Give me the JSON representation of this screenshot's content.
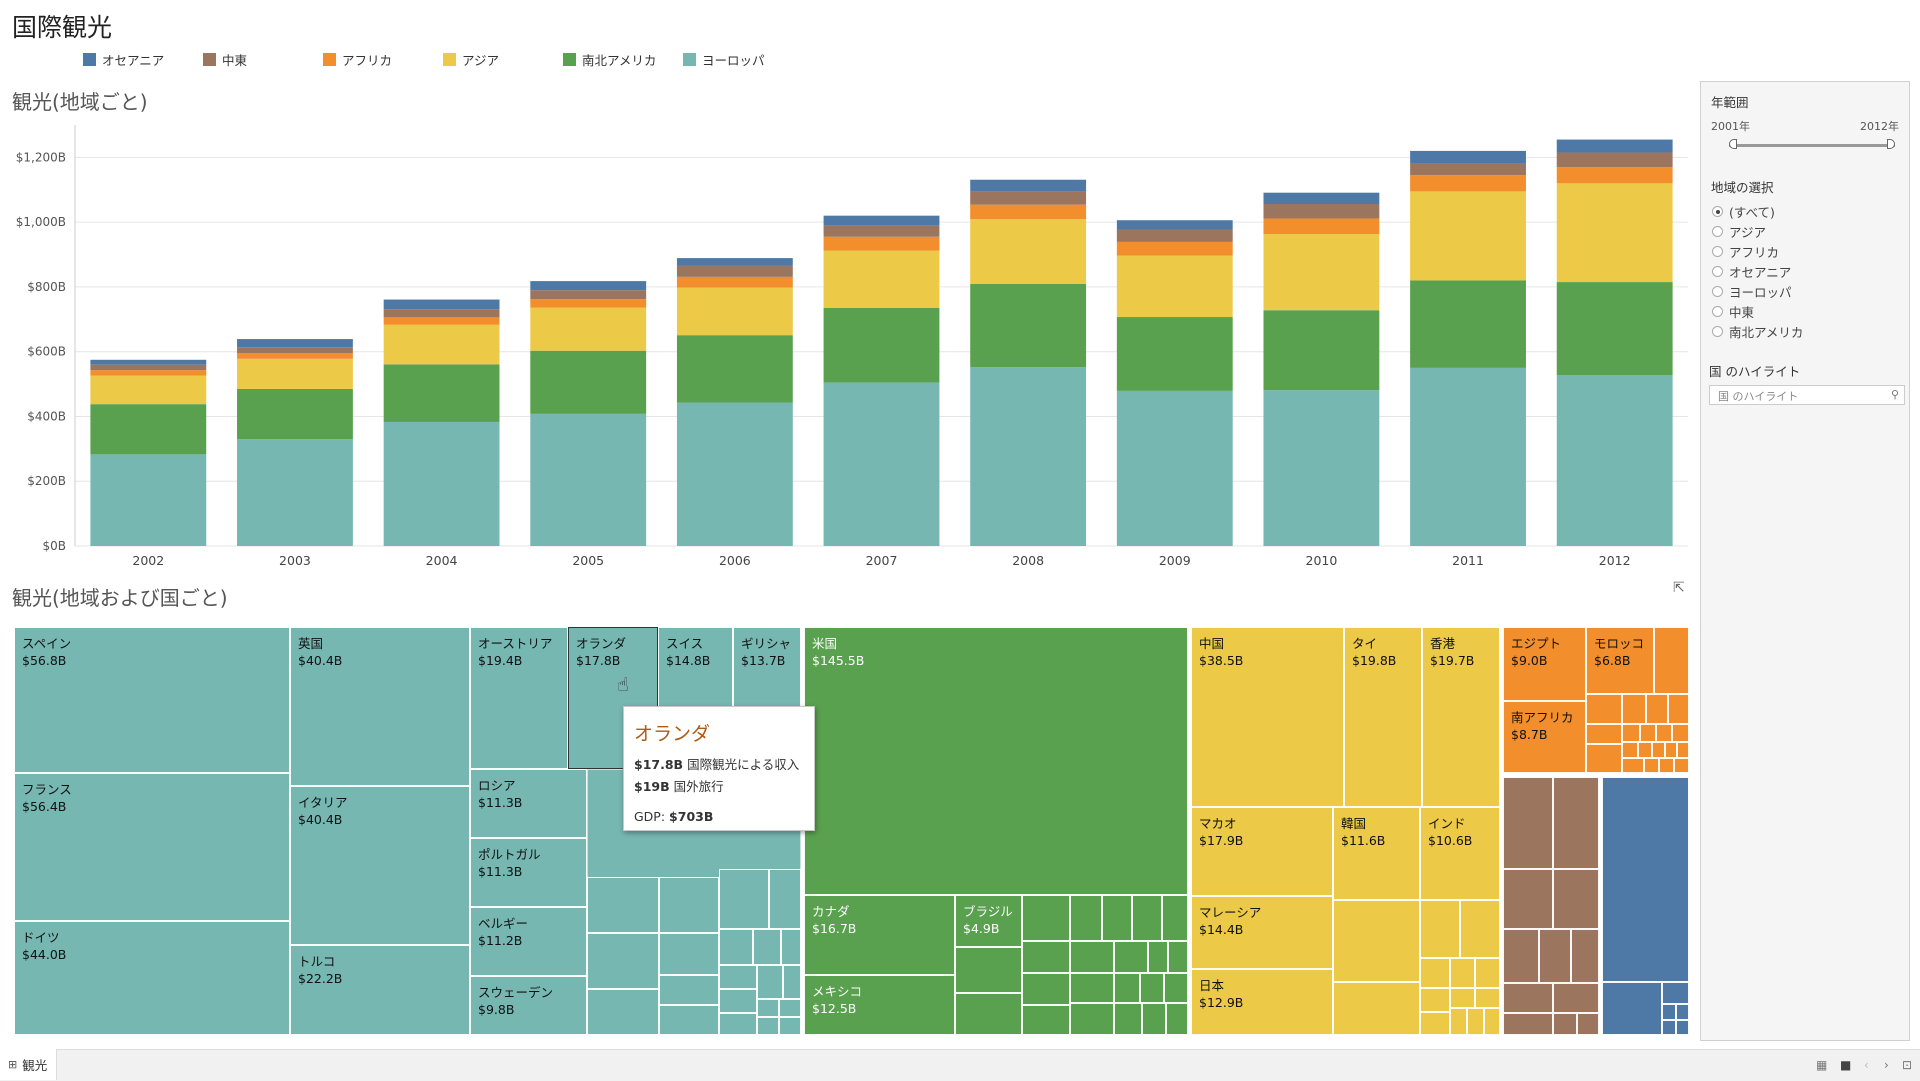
{
  "dashboard": {
    "title": "国際観光"
  },
  "legend": [
    {
      "label": "オセアニア",
      "color": "#4e79a7"
    },
    {
      "label": "中東",
      "color": "#9c755f"
    },
    {
      "label": "アフリカ",
      "color": "#f28e2b"
    },
    {
      "label": "アジア",
      "color": "#edc948"
    },
    {
      "label": "南北アメリカ",
      "color": "#59a14f"
    },
    {
      "label": "ヨーロッパ",
      "color": "#76b7b2"
    }
  ],
  "bar_section": {
    "title": "観光(地域ごと)"
  },
  "treemap_section": {
    "title": "観光(地域および国ごと)"
  },
  "chart_data": {
    "type": "bar",
    "stacked": true,
    "categories": [
      "2002",
      "2003",
      "2004",
      "2005",
      "2006",
      "2007",
      "2008",
      "2009",
      "2010",
      "2011",
      "2012"
    ],
    "series": [
      {
        "name": "ヨーロッパ",
        "color": "#76b7b2",
        "values": [
          283,
          330,
          383,
          408,
          443,
          505,
          552,
          479,
          481,
          550,
          528
        ]
      },
      {
        "name": "南北アメリカ",
        "color": "#59a14f",
        "values": [
          155,
          155,
          178,
          195,
          208,
          230,
          257,
          228,
          247,
          270,
          287
        ]
      },
      {
        "name": "アジア",
        "color": "#edc948",
        "values": [
          88,
          93,
          122,
          133,
          147,
          177,
          200,
          190,
          235,
          275,
          305
        ]
      },
      {
        "name": "アフリカ",
        "color": "#f28e2b",
        "values": [
          17,
          18,
          23,
          26,
          33,
          43,
          45,
          42,
          48,
          50,
          50
        ]
      },
      {
        "name": "中東",
        "color": "#9c755f",
        "values": [
          17,
          18,
          25,
          28,
          35,
          35,
          42,
          37,
          45,
          35,
          45
        ]
      },
      {
        "name": "オセアニア",
        "color": "#4e79a7",
        "values": [
          15,
          25,
          30,
          28,
          23,
          30,
          35,
          30,
          35,
          40,
          40
        ]
      }
    ],
    "ylim": [
      0,
      1300
    ],
    "yticks": [
      {
        "v": 0,
        "label": "$0B"
      },
      {
        "v": 200,
        "label": "$200B"
      },
      {
        "v": 400,
        "label": "$400B"
      },
      {
        "v": 600,
        "label": "$600B"
      },
      {
        "v": 800,
        "label": "$800B"
      },
      {
        "v": 1000,
        "label": "$1,000B"
      },
      {
        "v": 1200,
        "label": "$1,200B"
      }
    ],
    "grid": true
  },
  "treemap": {
    "labels": {
      "spain": {
        "name": "スペイン",
        "value": "$56.8B"
      },
      "france": {
        "name": "フランス",
        "value": "$56.4B"
      },
      "germany": {
        "name": "ドイツ",
        "value": "$44.0B"
      },
      "uk": {
        "name": "英国",
        "value": "$40.4B"
      },
      "italy": {
        "name": "イタリア",
        "value": "$40.4B"
      },
      "turkey": {
        "name": "トルコ",
        "value": "$22.2B"
      },
      "austria": {
        "name": "オーストリア",
        "value": "$19.4B"
      },
      "netherlands": {
        "name": "オランダ",
        "value": "$17.8B"
      },
      "switzerland": {
        "name": "スイス",
        "value": "$14.8B"
      },
      "greece": {
        "name": "ギリシャ",
        "value": "$13.7B"
      },
      "russia": {
        "name": "ロシア",
        "value": "$11.3B"
      },
      "portugal": {
        "name": "ポルトガル",
        "value": "$11.3B"
      },
      "belgium": {
        "name": "ベルギー",
        "value": "$11.2B"
      },
      "sweden": {
        "name": "スウェーデン",
        "value": "$9.8B"
      },
      "usa": {
        "name": "米国",
        "value": "$145.5B"
      },
      "canada": {
        "name": "カナダ",
        "value": "$16.7B"
      },
      "brazil": {
        "name": "ブラジル",
        "value": "$4.9B"
      },
      "mexico": {
        "name": "メキシコ",
        "value": "$12.5B"
      },
      "china": {
        "name": "中国",
        "value": "$38.5B"
      },
      "thailand": {
        "name": "タイ",
        "value": "$19.8B"
      },
      "hongkong": {
        "name": "香港",
        "value": "$19.7B"
      },
      "macau": {
        "name": "マカオ",
        "value": "$17.9B"
      },
      "korea": {
        "name": "韓国",
        "value": "$11.6B"
      },
      "india": {
        "name": "インド",
        "value": "$10.6B"
      },
      "malaysia": {
        "name": "マレーシア",
        "value": "$14.4B"
      },
      "japan": {
        "name": "日本",
        "value": "$12.9B"
      },
      "egypt": {
        "name": "エジプト",
        "value": "$9.0B"
      },
      "morocco": {
        "name": "モロッコ",
        "value": "$6.8B"
      },
      "southafrica": {
        "name": "南アフリカ",
        "value": "$8.7B"
      }
    }
  },
  "tooltip": {
    "name": "オランダ",
    "receipts_value": "$17.8B",
    "receipts_label": "国際観光による収入",
    "outbound_value": "$19B",
    "outbound_label": "国外旅行",
    "gdp_label": "GDP:",
    "gdp_value": "$703B"
  },
  "filters": {
    "year_range": {
      "label": "年範囲",
      "start": "2001年",
      "end": "2012年",
      "start_fraction": 0,
      "end_fraction": 1
    },
    "region": {
      "label": "地域の選択",
      "options": [
        "(すべて)",
        "アジア",
        "アフリカ",
        "オセアニア",
        "ヨーロッパ",
        "中東",
        "南北アメリカ"
      ],
      "selected": "(すべて)"
    },
    "highlight": {
      "label": "国 のハイライト",
      "placeholder": "国 のハイライト"
    }
  },
  "tabs": {
    "sheet": "観光"
  }
}
